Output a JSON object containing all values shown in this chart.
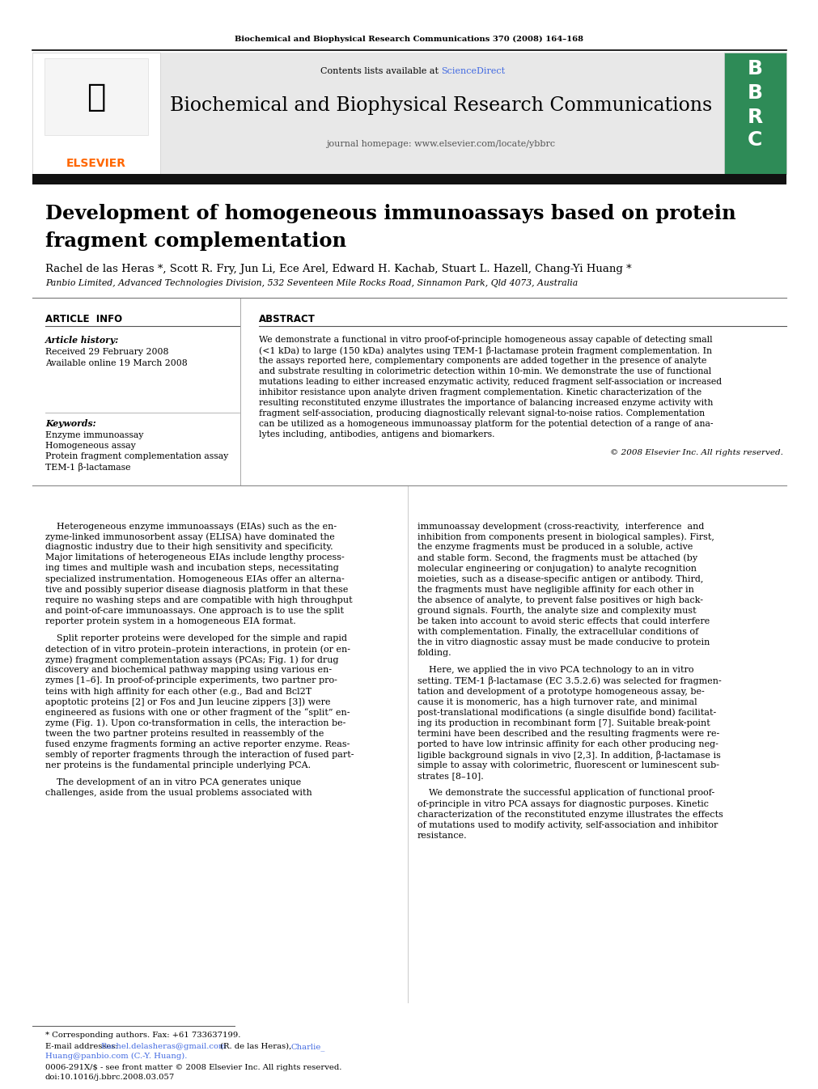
{
  "journal_header_text": "Biochemical and Biophysical Research Communications 370 (2008) 164–168",
  "contents_text": "Contents lists available at ",
  "sciencedirect_text": "ScienceDirect",
  "sciencedirect_color": "#4169E1",
  "journal_title": "Biochemical and Biophysical Research Communications",
  "journal_homepage": "journal homepage: www.elsevier.com/locate/ybbrc",
  "article_title_line1": "Development of homogeneous immunoassays based on protein",
  "article_title_line2": "fragment complementation",
  "authors": "Rachel de las Heras *, Scott R. Fry, Jun Li, Ece Arel, Edward H. Kachab, Stuart L. Hazell, Chang-Yi Huang *",
  "affiliation": "Panbio Limited, Advanced Technologies Division, 532 Seventeen Mile Rocks Road, Sinnamon Park, Qld 4073, Australia",
  "article_info_title": "ARTICLE  INFO",
  "abstract_title": "ABSTRACT",
  "article_history_label": "Article history:",
  "received_text": "Received 29 February 2008",
  "available_text": "Available online 19 March 2008",
  "keywords_label": "Keywords:",
  "keyword1": "Enzyme immunoassay",
  "keyword2": "Homogeneous assay",
  "keyword3": "Protein fragment complementation assay",
  "keyword4": "TEM-1 β-lactamase",
  "copyright_text": "© 2008 Elsevier Inc. All rights reserved.",
  "footnote1": "* Corresponding authors. Fax: +61 733637199.",
  "footnote2_part1": "E-mail addresses: ",
  "footnote2_email1": "Rachel.delasheras@gmail.com",
  "footnote2_mid": " (R. de las Heras), ",
  "footnote2_email2": "Charlie_",
  "footnote2_part3": "Huang@panbio.com",
  "footnote2_end": " (C.-Y. Huang).",
  "footer_text": "0006-291X/$ - see front matter © 2008 Elsevier Inc. All rights reserved.",
  "doi_text": "doi:10.1016/j.bbrc.2008.03.057",
  "bg_color": "#ffffff",
  "black": "#000000",
  "dark_gray": "#555555",
  "orange": "#FF6600",
  "blue_link": "#4169E1",
  "elsevier_orange": "#FF6600",
  "header_gray": "#e8e8e8",
  "bbrc_green": "#2E8B57",
  "abstract_lines": [
    "We demonstrate a functional in vitro proof-of-principle homogeneous assay capable of detecting small",
    "(<1 kDa) to large (150 kDa) analytes using TEM-1 β-lactamase protein fragment complementation. In",
    "the assays reported here, complementary components are added together in the presence of analyte",
    "and substrate resulting in colorimetric detection within 10-min. We demonstrate the use of functional",
    "mutations leading to either increased enzymatic activity, reduced fragment self-association or increased",
    "inhibitor resistance upon analyte driven fragment complementation. Kinetic characterization of the",
    "resulting reconstituted enzyme illustrates the importance of balancing increased enzyme activity with",
    "fragment self-association, producing diagnostically relevant signal-to-noise ratios. Complementation",
    "can be utilized as a homogeneous immunoassay platform for the potential detection of a range of ana-",
    "lytes including, antibodies, antigens and biomarkers."
  ],
  "col1_p1": [
    "    Heterogeneous enzyme immunoassays (EIAs) such as the en-",
    "zyme-linked immunosorbent assay (ELISA) have dominated the",
    "diagnostic industry due to their high sensitivity and specificity.",
    "Major limitations of heterogeneous EIAs include lengthy process-",
    "ing times and multiple wash and incubation steps, necessitating",
    "specialized instrumentation. Homogeneous EIAs offer an alterna-",
    "tive and possibly superior disease diagnosis platform in that these",
    "require no washing steps and are compatible with high throughput",
    "and point-of-care immunoassays. One approach is to use the split",
    "reporter protein system in a homogeneous EIA format."
  ],
  "col1_p2": [
    "    Split reporter proteins were developed for the simple and rapid",
    "detection of in vitro protein–protein interactions, in protein (or en-",
    "zyme) fragment complementation assays (PCAs; Fig. 1) for drug",
    "discovery and biochemical pathway mapping using various en-",
    "zymes [1–6]. In proof-of-principle experiments, two partner pro-",
    "teins with high affinity for each other (e.g., Bad and Bcl2T",
    "apoptotic proteins [2] or Fos and Jun leucine zippers [3]) were",
    "engineered as fusions with one or other fragment of the “split” en-",
    "zyme (Fig. 1). Upon co-transformation in cells, the interaction be-",
    "tween the two partner proteins resulted in reassembly of the",
    "fused enzyme fragments forming an active reporter enzyme. Reas-",
    "sembly of reporter fragments through the interaction of fused part-",
    "ner proteins is the fundamental principle underlying PCA."
  ],
  "col1_p3": [
    "    The development of an in vitro PCA generates unique",
    "challenges, aside from the usual problems associated with"
  ],
  "col2_p1": [
    "immunoassay development (cross-reactivity,  interference  and",
    "inhibition from components present in biological samples). First,",
    "the enzyme fragments must be produced in a soluble, active",
    "and stable form. Second, the fragments must be attached (by",
    "molecular engineering or conjugation) to analyte recognition",
    "moieties, such as a disease-specific antigen or antibody. Third,",
    "the fragments must have negligible affinity for each other in",
    "the absence of analyte, to prevent false positives or high back-",
    "ground signals. Fourth, the analyte size and complexity must",
    "be taken into account to avoid steric effects that could interfere",
    "with complementation. Finally, the extracellular conditions of",
    "the in vitro diagnostic assay must be made conducive to protein",
    "folding."
  ],
  "col2_p2": [
    "    Here, we applied the in vivo PCA technology to an in vitro",
    "setting. TEM-1 β-lactamase (EC 3.5.2.6) was selected for fragmen-",
    "tation and development of a prototype homogeneous assay, be-",
    "cause it is monomeric, has a high turnover rate, and minimal",
    "post-translational modifications (a single disulfide bond) facilitat-",
    "ing its production in recombinant form [7]. Suitable break-point",
    "termini have been described and the resulting fragments were re-",
    "ported to have low intrinsic affinity for each other producing neg-",
    "ligible background signals in vivo [2,3]. In addition, β-lactamase is",
    "simple to assay with colorimetric, fluorescent or luminescent sub-",
    "strates [8–10]."
  ],
  "col2_p3": [
    "    We demonstrate the successful application of functional proof-",
    "of-principle in vitro PCA assays for diagnostic purposes. Kinetic",
    "characterization of the reconstituted enzyme illustrates the effects",
    "of mutations used to modify activity, self-association and inhibitor",
    "resistance."
  ]
}
